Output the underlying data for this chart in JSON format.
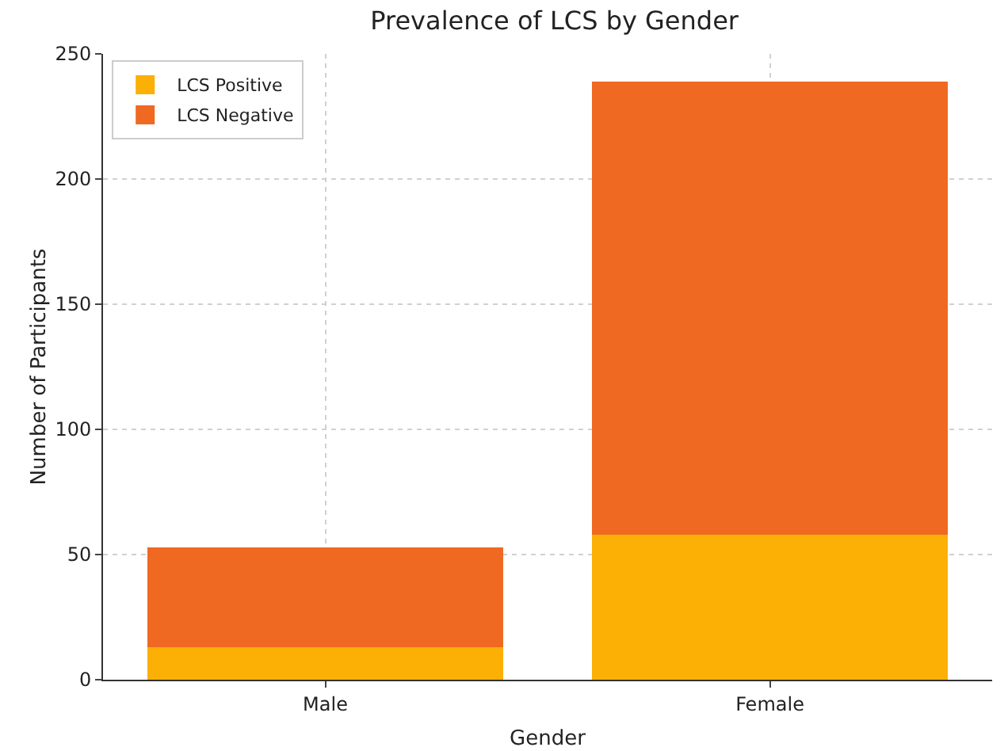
{
  "chart_data": {
    "type": "bar",
    "title": "Prevalence of LCS by Gender",
    "xlabel": "Gender",
    "ylabel": "Number of Participants",
    "categories": [
      "Male",
      "Female"
    ],
    "series": [
      {
        "name": "LCS Positive",
        "color": "#fcaf04",
        "values": [
          13,
          58
        ]
      },
      {
        "name": "LCS Negative",
        "color": "#ef6922",
        "values": [
          40,
          181
        ]
      }
    ],
    "stacked": true,
    "ylim": [
      0,
      250
    ],
    "yticks": [
      0,
      50,
      100,
      150,
      200,
      250
    ],
    "grid": true,
    "legend": "top left"
  }
}
